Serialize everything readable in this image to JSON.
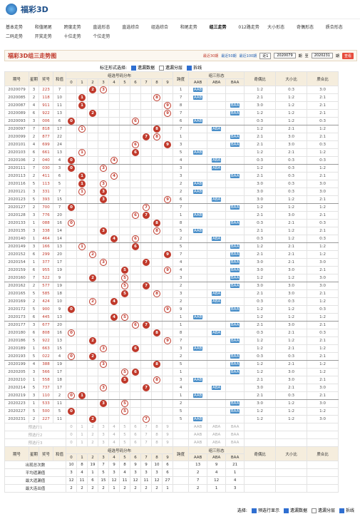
{
  "header": {
    "logo": "福彩3D"
  },
  "nav": [
    "基本走势",
    "和值尾尾",
    "跨度走势",
    "直选形态",
    "直选综合",
    "组选综合",
    "和尾走势",
    "组三走势",
    "012路走势",
    "大小形态",
    "奇偶形态",
    "质合形态",
    "二码走势",
    "开奖走势",
    "十位走势",
    "个位走势"
  ],
  "nav_active": 7,
  "title": "福彩3D组三走势图",
  "range": {
    "recent": [
      "最近30期",
      "最近50期",
      "最近100期"
    ],
    "select": "近1",
    "from": "2020079",
    "to_label": "至",
    "to": "2020231",
    "period_label": "期",
    "button": "查看"
  },
  "options": {
    "label": "标注形式选择:",
    "items": [
      "遗漏数据",
      "遗漏分层",
      "拆线"
    ]
  },
  "table": {
    "columns": [
      "期号",
      "星期",
      "奖号",
      "和值",
      "组选号码分布",
      "跨度",
      "组三形态",
      "奇偶比",
      "大小比",
      "质合比"
    ],
    "digits": [
      0,
      1,
      2,
      3,
      4,
      5,
      6,
      7,
      8,
      9
    ],
    "forms": [
      "AAB",
      "ABA",
      "BAA"
    ],
    "rows": [
      [
        "2020079",
        3,
        "223",
        7,
        1,
        "AAB",
        "1:2",
        "0:3",
        "3:0"
      ],
      [
        "2020085",
        2,
        "118",
        10,
        7,
        "AAB",
        "2:1",
        "1:2",
        "2:1"
      ],
      [
        "2020087",
        4,
        "911",
        11,
        8,
        "BAA",
        "3:0",
        "1:2",
        "2:1"
      ],
      [
        "2020089",
        6,
        "922",
        13,
        7,
        "BAA",
        "1:2",
        "1:2",
        "2:1"
      ],
      [
        "2020093",
        3,
        "006",
        6,
        6,
        "AAB",
        "0:3",
        "1:2",
        "0:3"
      ],
      [
        "2020097",
        7,
        "818",
        17,
        7,
        "ABA",
        "1:2",
        "2:1",
        "1:2"
      ],
      [
        "2020099",
        2,
        "877",
        22,
        1,
        "BAA",
        "2:1",
        "3:0",
        "2:1"
      ],
      [
        "2020101",
        4,
        "699",
        24,
        3,
        "BAA",
        "2:1",
        "3:0",
        "0:3"
      ],
      [
        "2020103",
        6,
        "661",
        13,
        5,
        "AAB",
        "1:2",
        "2:1",
        "1:2"
      ],
      [
        "2020106",
        2,
        "040",
        4,
        4,
        "ABA",
        "0:3",
        "0:3",
        "0:3"
      ],
      [
        "2020111",
        7,
        "030",
        3,
        3,
        "ABA",
        "1:2",
        "0:3",
        "1:2"
      ],
      [
        "2020113",
        2,
        "411",
        6,
        3,
        "BAA",
        "2:1",
        "0:3",
        "2:1"
      ],
      [
        "2020116",
        5,
        "113",
        5,
        2,
        "AAB",
        "3:0",
        "0:3",
        "3:0"
      ],
      [
        "2020121",
        3,
        "331",
        7,
        2,
        "AAB",
        "3:0",
        "0:3",
        "3:0"
      ],
      [
        "2020123",
        5,
        "393",
        15,
        6,
        "ABA",
        "3:0",
        "1:2",
        "2:1"
      ],
      [
        "2020127",
        2,
        "700",
        7,
        7,
        "BAA",
        "1:2",
        "1:2",
        "1:2"
      ],
      [
        "2020128",
        3,
        "776",
        20,
        1,
        "AAB",
        "2:1",
        "3:0",
        "2:1"
      ],
      [
        "2020133",
        1,
        "088",
        16,
        8,
        "BAA",
        "0:3",
        "2:1",
        "0:3"
      ],
      [
        "2020135",
        3,
        "338",
        14,
        5,
        "AAB",
        "2:1",
        "1:2",
        "2:1"
      ],
      [
        "2020140",
        1,
        "464",
        14,
        2,
        "ABA",
        "0:3",
        "1:2",
        "0:3"
      ],
      [
        "2020149",
        3,
        "166",
        13,
        5,
        "BAA",
        "1:2",
        "2:1",
        "1:2"
      ],
      [
        "2020152",
        6,
        "299",
        20,
        7,
        "BAA",
        "2:1",
        "2:1",
        "1:2"
      ],
      [
        "2020154",
        1,
        "377",
        17,
        4,
        "BAA",
        "3:0",
        "2:1",
        "3:0"
      ],
      [
        "2020159",
        6,
        "955",
        19,
        4,
        "BAA",
        "3:0",
        "3:0",
        "2:1"
      ],
      [
        "2020160",
        7,
        "522",
        9,
        3,
        "BAA",
        "1:2",
        "1:2",
        "3:0"
      ],
      [
        "2020162",
        2,
        "577",
        19,
        2,
        "BAA",
        "3:0",
        "3:0",
        "3:0"
      ],
      [
        "2020165",
        5,
        "585",
        18,
        3,
        "ABA",
        "2:1",
        "3:0",
        "2:1"
      ],
      [
        "2020169",
        2,
        "424",
        10,
        2,
        "ABA",
        "0:3",
        "0:3",
        "1:2"
      ],
      [
        "2020172",
        5,
        "900",
        9,
        9,
        "BAA",
        "1:2",
        "1:2",
        "0:3"
      ],
      [
        "2020173",
        6,
        "445",
        13,
        1,
        "AAB",
        "1:2",
        "1:2",
        "1:2"
      ],
      [
        "2020177",
        3,
        "677",
        20,
        1,
        "BAA",
        "2:1",
        "3:0",
        "2:1"
      ],
      [
        "2020180",
        6,
        "808",
        16,
        8,
        "ABA",
        "0:3",
        "2:1",
        "0:3"
      ],
      [
        "2020186",
        5,
        "922",
        13,
        7,
        "BAA",
        "1:2",
        "1:2",
        "2:1"
      ],
      [
        "2020189",
        1,
        "663",
        15,
        3,
        "AAB",
        "1:2",
        "2:1",
        "1:2"
      ],
      [
        "2020193",
        5,
        "022",
        4,
        2,
        "BAA",
        "0:3",
        "0:3",
        "2:1"
      ],
      [
        "2020199",
        4,
        "388",
        19,
        5,
        "BAA",
        "1:2",
        "2:1",
        "1:2"
      ],
      [
        "2020205",
        3,
        "566",
        17,
        1,
        "BAA",
        "1:2",
        "3:0",
        "1:2"
      ],
      [
        "2020210",
        1,
        "558",
        18,
        3,
        "AAB",
        "2:1",
        "3:0",
        "2:1"
      ],
      [
        "2020214",
        5,
        "737",
        17,
        4,
        "ABA",
        "3:0",
        "2:1",
        "3:0"
      ],
      [
        "2020219",
        3,
        "110",
        2,
        1,
        "AAB",
        "2:1",
        "0:3",
        "2:1"
      ],
      [
        "2020223",
        1,
        "533",
        11,
        2,
        "BAA",
        "3:0",
        "1:2",
        "3:0"
      ],
      [
        "2020227",
        5,
        "500",
        5,
        5,
        "BAA",
        "1:2",
        "1:2",
        "1:2"
      ],
      [
        "2020231",
        2,
        "227",
        11,
        5,
        "AAB",
        "1:2",
        "1:2",
        "3:0"
      ]
    ],
    "preselect": [
      "预选行1",
      "预选行2",
      "预选行3"
    ],
    "stats": [
      {
        "label": "出现总次数",
        "values": [
          10,
          8,
          19,
          7,
          9,
          8,
          9,
          9,
          10,
          6,
          13,
          9,
          21
        ]
      },
      {
        "label": "平均遗漏值",
        "values": [
          3,
          4,
          1,
          5,
          3,
          4,
          3,
          3,
          3,
          6,
          2,
          4,
          1
        ]
      },
      {
        "label": "最大遗漏值",
        "values": [
          12,
          11,
          6,
          15,
          12,
          11,
          12,
          11,
          12,
          27,
          7,
          12,
          4
        ]
      },
      {
        "label": "最大连出值",
        "values": [
          2,
          2,
          2,
          2,
          1,
          2,
          2,
          2,
          2,
          1,
          2,
          1,
          3
        ]
      }
    ]
  },
  "footer": {
    "label": "选择:",
    "items": [
      "预选行显示",
      "遗漏数据",
      "遗漏分层",
      "拆线"
    ]
  }
}
